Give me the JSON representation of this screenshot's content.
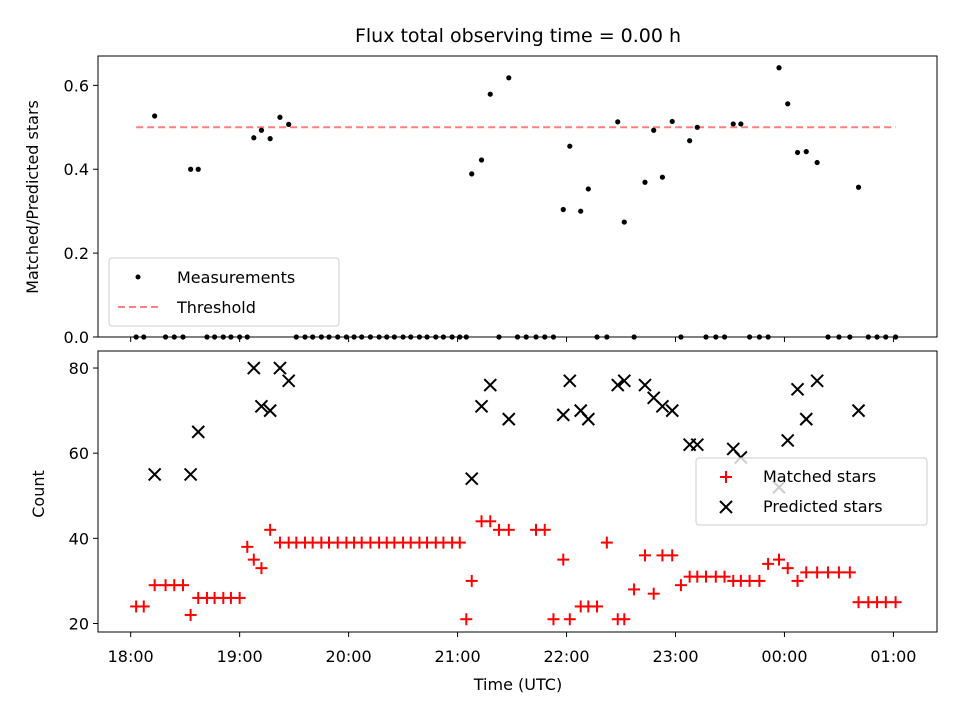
{
  "chart_data": [
    {
      "type": "scatter",
      "title": "Flux total observing time = 0.00 h",
      "ylabel": "Matched/Predicted stars",
      "ylim": [
        0.0,
        0.67
      ],
      "yticks": [
        0.0,
        0.2,
        0.4,
        0.6
      ],
      "ytick_labels": [
        "0.0",
        "0.2",
        "0.4",
        "0.6"
      ],
      "grid": false,
      "legend_position": "lower-left",
      "series": [
        {
          "name": "Measurements",
          "marker": "dot",
          "color": "#000000",
          "x": [
            18.05,
            18.12,
            18.22,
            18.32,
            18.4,
            18.48,
            18.55,
            18.62,
            18.7,
            18.77,
            18.85,
            18.92,
            19.0,
            19.07,
            19.13,
            19.2,
            19.28,
            19.37,
            19.45,
            19.52,
            19.6,
            19.67,
            19.75,
            19.82,
            19.9,
            19.98,
            20.05,
            20.12,
            20.2,
            20.28,
            20.35,
            20.42,
            20.5,
            20.57,
            20.65,
            20.72,
            20.8,
            20.87,
            20.95,
            21.02,
            21.08,
            21.13,
            21.22,
            21.3,
            21.38,
            21.47,
            21.55,
            21.63,
            21.72,
            21.8,
            21.88,
            21.97,
            22.03,
            22.13,
            22.2,
            22.28,
            22.37,
            22.47,
            22.53,
            22.62,
            22.72,
            22.8,
            22.88,
            22.97,
            23.05,
            23.13,
            23.2,
            23.28,
            23.37,
            23.45,
            23.53,
            23.6,
            23.68,
            23.77,
            23.85,
            23.95,
            24.03,
            24.12,
            24.2,
            24.3,
            24.4,
            24.5,
            24.6,
            24.68,
            24.77,
            24.85,
            24.93,
            25.02
          ],
          "y": [
            0.0,
            0.0,
            0.527,
            0.0,
            0.0,
            0.0,
            0.4,
            0.4,
            0.0,
            0.0,
            0.0,
            0.0,
            0.0,
            0.0,
            0.475,
            0.493,
            0.473,
            0.524,
            0.507,
            0.0,
            0.0,
            0.0,
            0.0,
            0.0,
            0.0,
            0.0,
            0.0,
            0.0,
            0.0,
            0.0,
            0.0,
            0.0,
            0.0,
            0.0,
            0.0,
            0.0,
            0.0,
            0.0,
            0.0,
            0.0,
            0.0,
            0.389,
            0.422,
            0.579,
            0.0,
            0.618,
            0.0,
            0.0,
            0.0,
            0.0,
            0.0,
            0.304,
            0.455,
            0.3,
            0.353,
            0.0,
            0.0,
            0.513,
            0.274,
            0.0,
            0.369,
            0.493,
            0.381,
            0.514,
            0.0,
            0.468,
            0.5,
            0.0,
            0.0,
            0.0,
            0.508,
            0.508,
            0.0,
            0.0,
            0.0,
            0.642,
            0.556,
            0.44,
            0.442,
            0.416,
            0.0,
            0.0,
            0.0,
            0.357,
            0.0,
            0.0,
            0.0,
            0.0
          ]
        },
        {
          "name": "Threshold",
          "style": "dashed",
          "color": "#ff7f7f",
          "x": [
            18.05,
            25.02
          ],
          "y": [
            0.5,
            0.5
          ]
        }
      ]
    },
    {
      "type": "scatter",
      "xlabel": "Time (UTC)",
      "ylabel": "Count",
      "ylim": [
        18.0,
        84.0
      ],
      "xlim": [
        17.7,
        25.4
      ],
      "yticks": [
        20,
        40,
        60,
        80
      ],
      "ytick_labels": [
        "20",
        "40",
        "60",
        "80"
      ],
      "xticks": [
        18,
        19,
        20,
        21,
        22,
        23,
        24,
        25
      ],
      "xtick_labels": [
        "18:00",
        "19:00",
        "20:00",
        "21:00",
        "22:00",
        "23:00",
        "00:00",
        "01:00"
      ],
      "grid": false,
      "legend_position": "center-right",
      "series": [
        {
          "name": "Matched stars",
          "marker": "plus",
          "color": "#ff0000",
          "x": [
            18.05,
            18.12,
            18.22,
            18.32,
            18.4,
            18.48,
            18.55,
            18.62,
            18.7,
            18.77,
            18.85,
            18.92,
            19.0,
            19.07,
            19.13,
            19.2,
            19.28,
            19.37,
            19.45,
            19.52,
            19.6,
            19.67,
            19.75,
            19.82,
            19.9,
            19.98,
            20.05,
            20.12,
            20.2,
            20.28,
            20.35,
            20.42,
            20.5,
            20.57,
            20.65,
            20.72,
            20.8,
            20.87,
            20.95,
            21.02,
            21.08,
            21.13,
            21.22,
            21.3,
            21.38,
            21.47,
            21.55,
            21.63,
            21.72,
            21.8,
            21.88,
            21.97,
            22.03,
            22.13,
            22.2,
            22.28,
            22.37,
            22.47,
            22.53,
            22.62,
            22.72,
            22.8,
            22.88,
            22.97,
            23.05,
            23.13,
            23.2,
            23.28,
            23.37,
            23.45,
            23.53,
            23.6,
            23.68,
            23.77,
            23.85,
            23.95,
            24.03,
            24.12,
            24.2,
            24.3,
            24.4,
            24.5,
            24.6,
            24.68,
            24.77,
            24.85,
            24.93,
            25.02
          ],
          "y": [
            24,
            24,
            29,
            29,
            29,
            29,
            22,
            26,
            26,
            26,
            26,
            26,
            26,
            38,
            35,
            33,
            42,
            39,
            39,
            39,
            39,
            39,
            39,
            39,
            39,
            39,
            39,
            39,
            39,
            39,
            39,
            39,
            39,
            39,
            39,
            39,
            39,
            39,
            39,
            39,
            21,
            30,
            44,
            44,
            42,
            42,
            null,
            null,
            42,
            42,
            21,
            35,
            21,
            24,
            24,
            24,
            39,
            21,
            21,
            28,
            36,
            27,
            36,
            36,
            29,
            31,
            31,
            31,
            31,
            31,
            30,
            30,
            30,
            30,
            34,
            35,
            33,
            30,
            32,
            32,
            32,
            32,
            32,
            25,
            25,
            25,
            25,
            25
          ]
        },
        {
          "name": "Predicted stars",
          "marker": "x",
          "color": "#000000",
          "x": [
            18.22,
            18.55,
            18.62,
            19.13,
            19.2,
            19.28,
            19.37,
            19.45,
            21.13,
            21.22,
            21.3,
            21.47,
            21.97,
            22.03,
            22.13,
            22.2,
            22.47,
            22.53,
            22.72,
            22.8,
            22.88,
            22.97,
            23.13,
            23.2,
            23.53,
            23.6,
            23.95,
            24.03,
            24.12,
            24.2,
            24.3,
            24.68
          ],
          "y": [
            55,
            55,
            65,
            80,
            71,
            70,
            80,
            77,
            54,
            71,
            76,
            68,
            69,
            77,
            70,
            68,
            76,
            77,
            76,
            73,
            71,
            70,
            62,
            62,
            61,
            59,
            52,
            63,
            75,
            68,
            77,
            70
          ]
        }
      ]
    }
  ]
}
